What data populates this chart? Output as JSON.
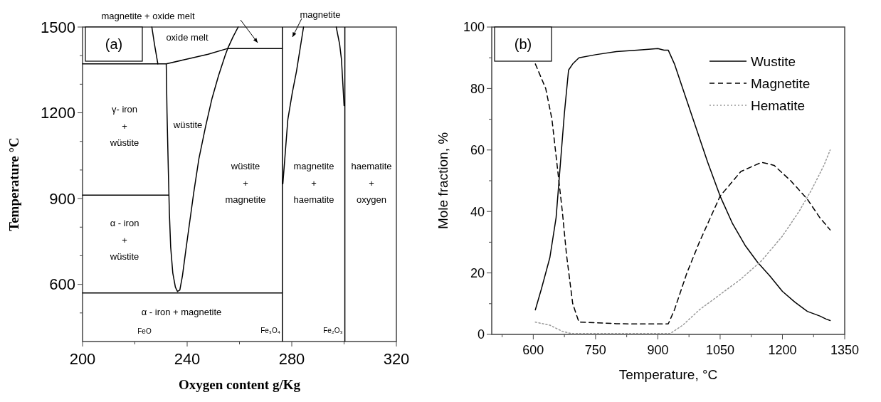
{
  "chart_data": [
    {
      "type": "line",
      "xlabel": "Oxygen content g/Kg",
      "ylabel": "Temperature °C",
      "xlim": [
        200,
        320
      ],
      "xticks": [
        200,
        {
          "value": 220,
          "label": null
        },
        240,
        {
          "value": 260,
          "label": null
        },
        280,
        {
          "value": 300,
          "label": null
        },
        320
      ],
      "ylim": [
        400,
        1500
      ],
      "yticks": [
        {
          "value": 500,
          "label": null
        },
        600,
        {
          "value": 700,
          "label": null
        },
        {
          "value": 800,
          "label": null
        },
        900,
        {
          "value": 1000,
          "label": null
        },
        {
          "value": 1100,
          "label": null
        },
        1200,
        {
          "value": 1300,
          "label": null
        },
        {
          "value": 1400,
          "label": null
        },
        1500
      ],
      "line_style": "solid",
      "series": [
        {
          "color": "#000000",
          "x": [
            200,
            276.4
          ],
          "values": [
            570,
            570
          ]
        },
        {
          "color": "#000000",
          "x": [
            200,
            233
          ],
          "values": [
            912,
            912
          ]
        },
        {
          "color": "#000000",
          "x": [
            200,
            232,
            240,
            248,
            255.5,
            257.5,
            259.5
          ],
          "values": [
            1371,
            1371,
            1388,
            1405,
            1425,
            1465,
            1500
          ]
        },
        {
          "color": "#000000",
          "x": [
            232,
            232.3,
            232.8,
            233.2,
            233.7,
            234.5,
            235.5,
            236.3,
            237.2,
            238.2,
            239.5,
            241,
            242.5,
            244.5,
            247,
            249.5,
            252,
            254.5,
            255.5,
            276.4
          ],
          "values": [
            1371,
            1200,
            1000,
            850,
            730,
            640,
            590,
            575,
            580,
            630,
            720,
            820,
            920,
            1040,
            1150,
            1250,
            1330,
            1400,
            1425,
            1425
          ]
        },
        {
          "color": "#000000",
          "x": [
            226.5,
            227.5,
            228.8
          ],
          "values": [
            1500,
            1440,
            1371
          ]
        },
        {
          "color": "#000000",
          "x": [
            276.6,
            278.5,
            280.2,
            281.8,
            284.5
          ],
          "values": [
            952,
            1177,
            1270,
            1345,
            1500
          ]
        },
        {
          "color": "#000000",
          "x": [
            297,
            298.3,
            299,
            300
          ],
          "values": [
            1500,
            1440,
            1387,
            1225
          ]
        }
      ],
      "ref_lines": [
        {
          "axis": "x",
          "value": 276.4,
          "label": "Fe₃O₄",
          "color": "#000000"
        },
        {
          "axis": "x",
          "value": 300.3,
          "label": "Fe₂O₃",
          "color": "#000000"
        }
      ],
      "annotations": [
        "(a)",
        "magnetite + oxide melt",
        "magnetite",
        "oxide melt",
        "γ- iron\n+\nwüstite",
        "wüstite",
        "wüstite\n+\nmagnetite",
        "magnetite\n+\nhaematite",
        "haematite\n+\noxygen",
        "α - iron\n+\nwüstite",
        "α - iron  +  magnetite",
        "FeO"
      ]
    },
    {
      "type": "line",
      "xlabel": "Temperature, °C",
      "ylabel": "Mole fraction, %",
      "xlim": [
        500,
        1350
      ],
      "xticks": [
        {
          "value": 525,
          "label": null
        },
        600,
        {
          "value": 675,
          "label": null
        },
        750,
        {
          "value": 825,
          "label": null
        },
        900,
        {
          "value": 975,
          "label": null
        },
        1050,
        {
          "value": 1125,
          "label": null
        },
        1200,
        {
          "value": 1275,
          "label": null
        },
        1350
      ],
      "ylim": [
        0,
        100
      ],
      "yticks": [
        0,
        {
          "value": 10,
          "label": null
        },
        20,
        {
          "value": 30,
          "label": null
        },
        40,
        {
          "value": 50,
          "label": null
        },
        60,
        {
          "value": 70,
          "label": null
        },
        80,
        {
          "value": 90,
          "label": null
        },
        100
      ],
      "legend": "top right",
      "series": [
        {
          "name": "Wustite",
          "color": "#000000",
          "line_style": "solid",
          "x": [
            605,
            620,
            640,
            655,
            665,
            675,
            685,
            695,
            710,
            750,
            800,
            850,
            900,
            915,
            925,
            940,
            960,
            990,
            1020,
            1050,
            1080,
            1110,
            1140,
            1170,
            1200,
            1230,
            1260,
            1290,
            1305,
            1315
          ],
          "values": [
            8,
            15,
            25,
            38,
            55,
            72,
            86,
            88,
            90,
            91,
            92,
            92.5,
            93,
            92.5,
            92.5,
            88,
            80,
            68,
            56,
            45,
            36,
            29,
            23.5,
            19,
            14,
            10.5,
            7.5,
            6,
            5,
            4.5
          ]
        },
        {
          "name": "Magnetite",
          "color": "#000000",
          "line_style": "dashed",
          "x": [
            605,
            630,
            645,
            660,
            670,
            680,
            695,
            710,
            750,
            800,
            850,
            925,
            940,
            970,
            1000,
            1050,
            1100,
            1150,
            1180,
            1220,
            1260,
            1290,
            1315
          ],
          "values": [
            88,
            80,
            70,
            52,
            40,
            26,
            10,
            4,
            3.8,
            3.5,
            3.4,
            3.4,
            8,
            20,
            30,
            45,
            53,
            56,
            55,
            50,
            44,
            38,
            34
          ]
        },
        {
          "name": "Hematite",
          "color": "#999999",
          "line_style": "dotted",
          "x": [
            605,
            640,
            670,
            690,
            800,
            930,
            960,
            1000,
            1050,
            1100,
            1150,
            1200,
            1240,
            1270,
            1300,
            1315
          ],
          "values": [
            4,
            3,
            1,
            0.3,
            0.3,
            0.3,
            3,
            8,
            13,
            18,
            24,
            32,
            40,
            47,
            55,
            60
          ]
        }
      ],
      "annotations": [
        "(b)"
      ]
    }
  ]
}
